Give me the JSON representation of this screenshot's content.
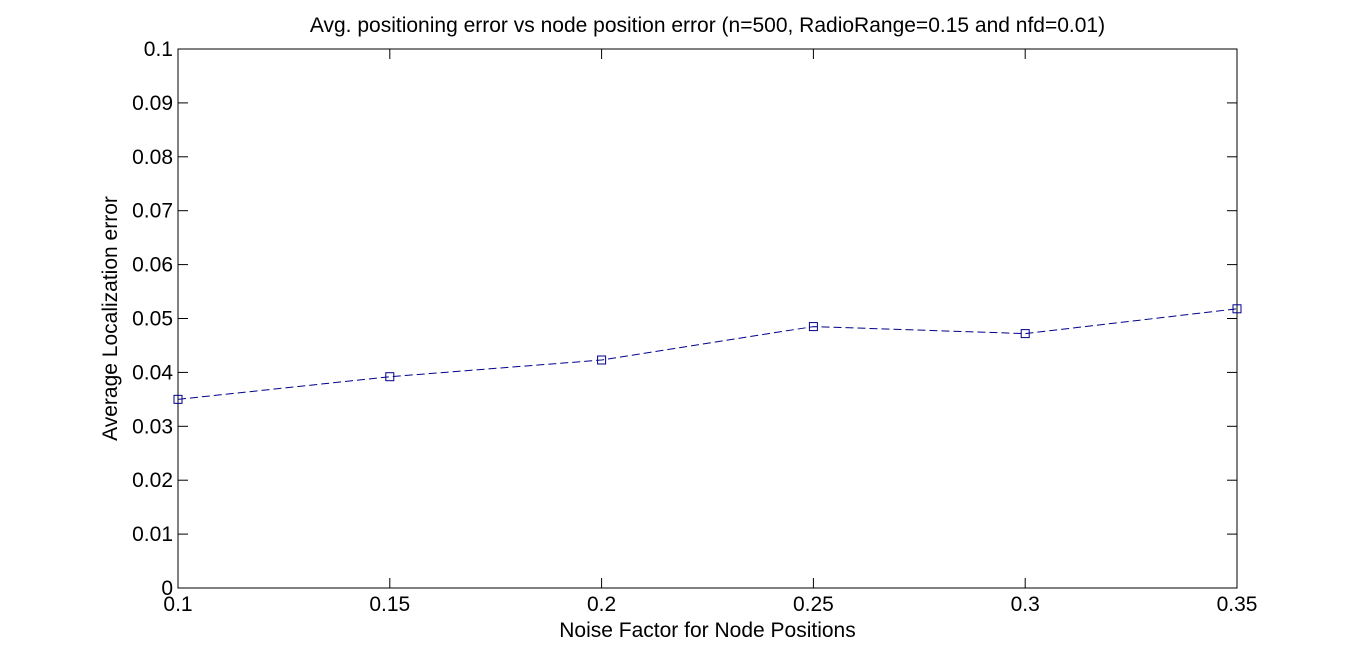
{
  "chart_data": {
    "type": "line",
    "title": "Avg. positioning error vs node position error (n=500, RadioRange=0.15 and nfd=0.01)",
    "xlabel": "Noise Factor for Node Positions",
    "ylabel": "Average Localization error",
    "xlim": [
      0.1,
      0.35
    ],
    "ylim": [
      0,
      0.1
    ],
    "x_ticks": [
      "0.1",
      "0.15",
      "0.2",
      "0.25",
      "0.3",
      "0.35"
    ],
    "y_ticks": [
      "0",
      "0.01",
      "0.02",
      "0.03",
      "0.04",
      "0.05",
      "0.06",
      "0.07",
      "0.08",
      "0.09",
      "0.1"
    ],
    "grid": false,
    "series": [
      {
        "x": [
          0.1,
          0.15,
          0.2,
          0.25,
          0.3,
          0.35
        ],
        "y": [
          0.035,
          0.0392,
          0.0423,
          0.0485,
          0.0472,
          0.0518
        ],
        "color": "#00008b",
        "line_style": "dashed",
        "marker": "square"
      }
    ]
  }
}
